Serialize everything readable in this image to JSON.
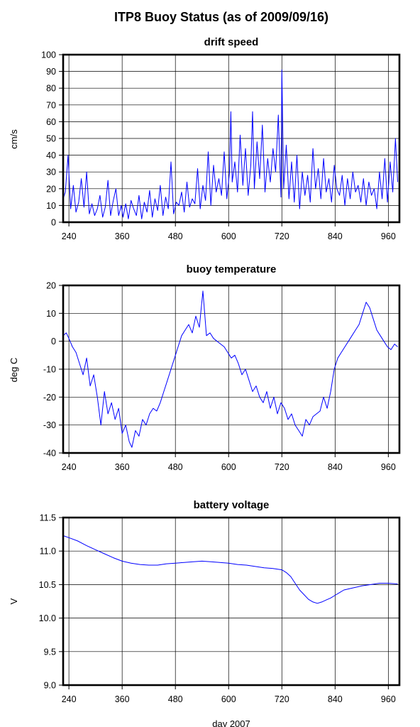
{
  "title": "ITP8 Buoy Status (as of 2009/09/16)",
  "colors": {
    "series": "#0000ff",
    "axis": "#000000"
  },
  "chart_data": [
    {
      "type": "line",
      "title": "drift speed",
      "ylabel": "cm/s",
      "xlabel": "",
      "xlim": [
        227,
        985
      ],
      "ylim": [
        0,
        100
      ],
      "xticks": [
        "240",
        "360",
        "480",
        "600",
        "720",
        "840",
        "960"
      ],
      "yticks": [
        "0",
        "10",
        "20",
        "30",
        "40",
        "50",
        "60",
        "70",
        "80",
        "90",
        "100"
      ],
      "grid": true,
      "series": [
        {
          "x": [
            227,
            232,
            238,
            244,
            250,
            256,
            262,
            268,
            274,
            280,
            286,
            292,
            298,
            304,
            310,
            316,
            322,
            328,
            334,
            340,
            346,
            352,
            358,
            362,
            368,
            374,
            380,
            386,
            392,
            398,
            404,
            410,
            416,
            422,
            428,
            434,
            440,
            446,
            452,
            458,
            464,
            470,
            476,
            482,
            488,
            494,
            500,
            506,
            512,
            518,
            524,
            530,
            536,
            542,
            548,
            554,
            560,
            566,
            572,
            578,
            584,
            590,
            596,
            602,
            605,
            608,
            614,
            620,
            626,
            632,
            638,
            644,
            650,
            654,
            658,
            664,
            670,
            676,
            682,
            688,
            694,
            700,
            706,
            712,
            718,
            720,
            724,
            730,
            736,
            742,
            748,
            754,
            760,
            766,
            772,
            778,
            784,
            790,
            796,
            802,
            808,
            814,
            820,
            826,
            832,
            838,
            844,
            850,
            856,
            862,
            868,
            874,
            880,
            886,
            892,
            898,
            904,
            910,
            916,
            922,
            928,
            934,
            940,
            946,
            952,
            958,
            964,
            970,
            976,
            981
          ],
          "y": [
            14,
            18,
            40,
            8,
            22,
            6,
            12,
            26,
            9,
            30,
            5,
            11,
            4,
            8,
            16,
            3,
            9,
            25,
            4,
            13,
            20,
            4,
            10,
            3,
            11,
            2,
            13,
            8,
            4,
            16,
            2,
            12,
            6,
            19,
            3,
            14,
            7,
            22,
            4,
            15,
            8,
            36,
            5,
            12,
            10,
            18,
            6,
            24,
            9,
            14,
            11,
            32,
            8,
            22,
            13,
            42,
            10,
            34,
            18,
            26,
            16,
            42,
            14,
            30,
            66,
            24,
            36,
            18,
            52,
            22,
            44,
            16,
            34,
            66,
            20,
            48,
            26,
            58,
            18,
            38,
            24,
            44,
            30,
            64,
            15,
            91,
            20,
            46,
            14,
            36,
            12,
            40,
            8,
            30,
            16,
            28,
            12,
            44,
            20,
            32,
            14,
            38,
            18,
            26,
            12,
            34,
            20,
            16,
            28,
            10,
            26,
            14,
            30,
            18,
            22,
            12,
            26,
            10,
            24,
            16,
            20,
            8,
            30,
            14,
            38,
            12,
            36,
            18,
            50,
            24
          ]
        }
      ]
    },
    {
      "type": "line",
      "title": "buoy temperature",
      "ylabel": "deg C",
      "xlabel": "",
      "xlim": [
        227,
        985
      ],
      "ylim": [
        -40,
        20
      ],
      "xticks": [
        "240",
        "360",
        "480",
        "600",
        "720",
        "840",
        "960"
      ],
      "yticks": [
        "-40",
        "-30",
        "-20",
        "-10",
        "0",
        "10",
        "20"
      ],
      "grid": true,
      "series": [
        {
          "x": [
            227,
            234,
            240,
            248,
            256,
            264,
            272,
            280,
            288,
            296,
            304,
            312,
            320,
            328,
            336,
            344,
            352,
            360,
            368,
            376,
            382,
            390,
            398,
            406,
            414,
            422,
            430,
            438,
            446,
            454,
            462,
            470,
            478,
            486,
            494,
            502,
            510,
            518,
            526,
            534,
            542,
            550,
            558,
            566,
            574,
            582,
            590,
            598,
            606,
            614,
            622,
            630,
            638,
            646,
            654,
            662,
            670,
            678,
            686,
            694,
            702,
            710,
            718,
            726,
            734,
            742,
            750,
            758,
            766,
            774,
            782,
            790,
            798,
            806,
            814,
            822,
            830,
            838,
            846,
            854,
            862,
            870,
            878,
            886,
            894,
            902,
            910,
            918,
            926,
            934,
            942,
            950,
            958,
            966,
            974,
            981
          ],
          "y": [
            2,
            3,
            1,
            -2,
            -4,
            -8,
            -12,
            -6,
            -16,
            -12,
            -20,
            -30,
            -18,
            -26,
            -22,
            -28,
            -24,
            -33,
            -30,
            -36,
            -38,
            -32,
            -34,
            -28,
            -30,
            -26,
            -24,
            -25,
            -22,
            -18,
            -14,
            -10,
            -6,
            -2,
            2,
            4,
            6,
            3,
            9,
            5,
            18,
            2,
            3,
            1,
            0,
            -1,
            -2,
            -4,
            -6,
            -5,
            -8,
            -12,
            -10,
            -14,
            -18,
            -16,
            -20,
            -22,
            -18,
            -24,
            -20,
            -26,
            -22,
            -24,
            -28,
            -26,
            -30,
            -32,
            -34,
            -28,
            -30,
            -27,
            -26,
            -25,
            -20,
            -24,
            -18,
            -10,
            -6,
            -4,
            -2,
            0,
            2,
            4,
            6,
            10,
            14,
            12,
            8,
            4,
            2,
            0,
            -2,
            -3,
            -1,
            -2
          ]
        }
      ]
    },
    {
      "type": "line",
      "title": "battery voltage",
      "ylabel": "V",
      "xlabel": "day 2007",
      "xlim": [
        227,
        985
      ],
      "ylim": [
        9.0,
        11.5
      ],
      "xticks": [
        "240",
        "360",
        "480",
        "600",
        "720",
        "840",
        "960"
      ],
      "yticks": [
        "9.0",
        "9.5",
        "10.0",
        "10.5",
        "11.0",
        "11.5"
      ],
      "grid": true,
      "series": [
        {
          "x": [
            227,
            240,
            260,
            280,
            300,
            320,
            340,
            360,
            380,
            400,
            420,
            440,
            460,
            480,
            500,
            520,
            540,
            560,
            580,
            600,
            620,
            640,
            660,
            680,
            700,
            720,
            730,
            740,
            750,
            760,
            770,
            780,
            790,
            800,
            810,
            820,
            830,
            840,
            850,
            860,
            880,
            900,
            920,
            940,
            960,
            981
          ],
          "y": [
            11.23,
            11.2,
            11.15,
            11.08,
            11.02,
            10.96,
            10.9,
            10.85,
            10.82,
            10.8,
            10.79,
            10.79,
            10.81,
            10.82,
            10.83,
            10.84,
            10.85,
            10.84,
            10.83,
            10.82,
            10.8,
            10.79,
            10.77,
            10.75,
            10.74,
            10.72,
            10.68,
            10.62,
            10.52,
            10.42,
            10.35,
            10.28,
            10.24,
            10.22,
            10.24,
            10.27,
            10.3,
            10.34,
            10.38,
            10.42,
            10.45,
            10.48,
            10.5,
            10.52,
            10.52,
            10.51
          ]
        }
      ]
    }
  ]
}
